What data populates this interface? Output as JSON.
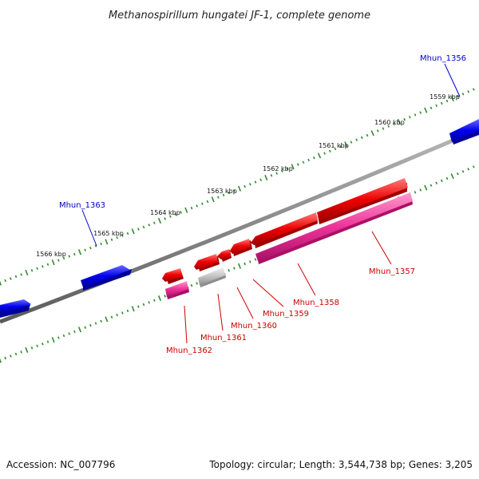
{
  "title": "Methanospirillum hungatei JF-1, complete genome",
  "footer": {
    "accession": "Accession: NC_007796",
    "summary": "Topology: circular; Length: 3,544,738 bp; Genes: 3,205"
  },
  "colors": {
    "backbone": "#8a8a8a",
    "tick": "#2e8b2e",
    "forward_gene": "#0000ee",
    "reverse_gene": "#ee0000",
    "reverse_cds_partner": "#ee3399",
    "pseudo": "#c0c0c0"
  },
  "scale_labels": [
    "1559 kbp",
    "1560 kbp",
    "1561 kbp",
    "1562 kbp",
    "1563 kbp",
    "1564 kbp",
    "1565 kbp",
    "1566 kbp"
  ],
  "gene_labels": {
    "Mhun_1356": "Mhun_1356",
    "Mhun_1357": "Mhun_1357",
    "Mhun_1358": "Mhun_1358",
    "Mhun_1359": "Mhun_1359",
    "Mhun_1360": "Mhun_1360",
    "Mhun_1361": "Mhun_1361",
    "Mhun_1362": "Mhun_1362",
    "Mhun_1363": "Mhun_1363"
  }
}
